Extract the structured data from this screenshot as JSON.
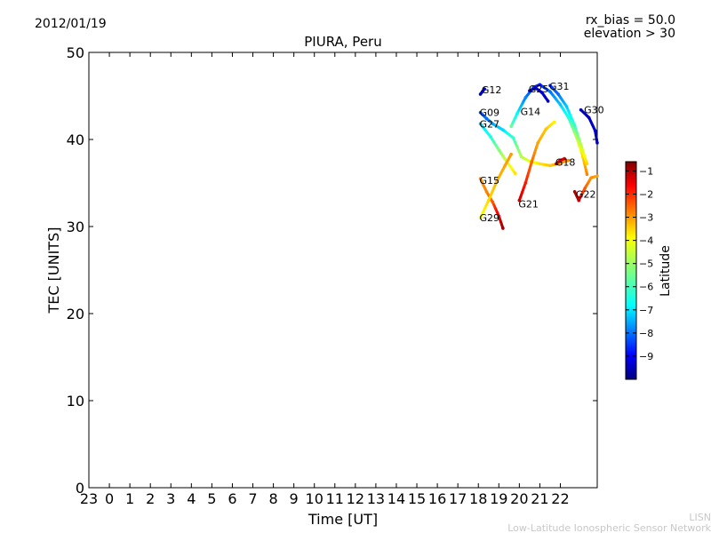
{
  "header": {
    "date": "2012/01/19",
    "rx_bias": "rx_bias = 50.0",
    "elevation": "elevation > 30"
  },
  "credit": {
    "short": "LISN",
    "long": "Low-Latitude Ionospheric Sensor Network"
  },
  "chart_data": {
    "type": "scatter",
    "title": "PIURA, Peru",
    "xlabel": "Time [UT]",
    "ylabel": "TEC [UNITS]",
    "ylim": [
      0,
      50
    ],
    "xlim": [
      -1,
      23.8
    ],
    "x_ticks": [
      {
        "x": -1,
        "label": "23"
      },
      {
        "x": 0,
        "label": "0"
      },
      {
        "x": 1,
        "label": "1"
      },
      {
        "x": 2,
        "label": "2"
      },
      {
        "x": 3,
        "label": "3"
      },
      {
        "x": 4,
        "label": "4"
      },
      {
        "x": 5,
        "label": "5"
      },
      {
        "x": 6,
        "label": "6"
      },
      {
        "x": 7,
        "label": "7"
      },
      {
        "x": 8,
        "label": "8"
      },
      {
        "x": 9,
        "label": "9"
      },
      {
        "x": 10,
        "label": "10"
      },
      {
        "x": 11,
        "label": "11"
      },
      {
        "x": 12,
        "label": "12"
      },
      {
        "x": 13,
        "label": "13"
      },
      {
        "x": 14,
        "label": "14"
      },
      {
        "x": 15,
        "label": "15"
      },
      {
        "x": 16,
        "label": "16"
      },
      {
        "x": 17,
        "label": "17"
      },
      {
        "x": 18,
        "label": "18"
      },
      {
        "x": 19,
        "label": "19"
      },
      {
        "x": 20,
        "label": "20"
      },
      {
        "x": 21,
        "label": "21"
      },
      {
        "x": 22,
        "label": "22"
      }
    ],
    "y_ticks": [
      0,
      10,
      20,
      30,
      40,
      50
    ],
    "grid": false,
    "colorbar": {
      "label": "Latitude",
      "min": -10,
      "max": -0.6,
      "ticks": [
        -1,
        -2,
        -3,
        -4,
        -5,
        -6,
        -7,
        -8,
        -9
      ],
      "colormap": "jet"
    },
    "series": [
      {
        "name": "G12",
        "label_at": [
          18.2,
          45.7
        ],
        "points": [
          [
            18.1,
            45.2,
            -9.5
          ],
          [
            18.2,
            45.5,
            -9.3
          ],
          [
            18.3,
            45.8,
            -9.2
          ]
        ]
      },
      {
        "name": "G09",
        "label_at": [
          18.1,
          43.1
        ],
        "points": [
          [
            18.1,
            43.1,
            -8.1
          ],
          [
            18.4,
            42.4,
            -7.8
          ],
          [
            18.7,
            41.8,
            -7.3
          ],
          [
            19.2,
            41.1,
            -6.8
          ],
          [
            19.7,
            40.2,
            -6.0
          ],
          [
            20.1,
            38.0,
            -4.8
          ],
          [
            20.5,
            37.5,
            -4.4
          ],
          [
            21.0,
            37.2,
            -3.9
          ],
          [
            21.5,
            37.0,
            -3.6
          ],
          [
            22.0,
            37.3,
            -3.3
          ],
          [
            22.4,
            37.6,
            -3.1
          ]
        ]
      },
      {
        "name": "G27",
        "label_at": [
          18.1,
          41.8
        ],
        "points": [
          [
            18.1,
            41.8,
            -7.0
          ],
          [
            18.6,
            40.3,
            -6.2
          ],
          [
            19.0,
            38.8,
            -5.3
          ],
          [
            19.4,
            37.4,
            -4.5
          ],
          [
            19.8,
            36.1,
            -3.9
          ]
        ]
      },
      {
        "name": "G14",
        "label_at": [
          20.1,
          43.2
        ],
        "points": [
          [
            19.6,
            41.5,
            -5.5
          ],
          [
            19.9,
            43.0,
            -6.5
          ],
          [
            20.3,
            44.8,
            -7.6
          ],
          [
            20.7,
            46.0,
            -8.3
          ],
          [
            21.0,
            46.3,
            -8.6
          ],
          [
            21.5,
            45.5,
            -7.8
          ],
          [
            22.0,
            44.0,
            -7.0
          ],
          [
            22.4,
            42.5,
            -6.2
          ],
          [
            22.8,
            40.2,
            -4.8
          ],
          [
            23.1,
            38.0,
            -3.8
          ],
          [
            23.3,
            36.0,
            -3.0
          ]
        ]
      },
      {
        "name": "G25",
        "label_at": [
          20.5,
          45.8
        ],
        "points": [
          [
            20.5,
            45.6,
            -9.4
          ],
          [
            20.8,
            45.9,
            -9.3
          ],
          [
            21.1,
            45.4,
            -9.2
          ],
          [
            21.4,
            44.4,
            -9.4
          ]
        ]
      },
      {
        "name": "G31",
        "label_at": [
          21.5,
          46.1
        ],
        "points": [
          [
            21.5,
            46.2,
            -8.5
          ],
          [
            21.9,
            45.2,
            -7.8
          ],
          [
            22.3,
            43.8,
            -7.0
          ],
          [
            22.7,
            41.6,
            -6.0
          ],
          [
            23.0,
            39.4,
            -4.8
          ],
          [
            23.3,
            37.2,
            -3.8
          ]
        ]
      },
      {
        "name": "G30",
        "label_at": [
          23.2,
          43.4
        ],
        "points": [
          [
            23.0,
            43.4,
            -9.5
          ],
          [
            23.4,
            42.5,
            -9.4
          ],
          [
            23.7,
            41.0,
            -9.3
          ],
          [
            23.8,
            39.6,
            -9.5
          ]
        ]
      },
      {
        "name": "G18",
        "label_at": [
          21.8,
          37.4
        ],
        "points": [
          [
            21.8,
            37.2,
            -1.2
          ],
          [
            22.0,
            37.6,
            -1.4
          ],
          [
            22.2,
            37.8,
            -1.6
          ]
        ]
      },
      {
        "name": "G15",
        "label_at": [
          18.1,
          35.3
        ],
        "points": [
          [
            18.1,
            35.5,
            -3.1
          ],
          [
            18.4,
            34.0,
            -3.0
          ],
          [
            18.7,
            32.8,
            -2.6
          ],
          [
            19.0,
            31.2,
            -1.6
          ],
          [
            19.2,
            29.8,
            -0.9
          ]
        ]
      },
      {
        "name": "G29",
        "label_at": [
          18.1,
          31.0
        ],
        "points": [
          [
            18.1,
            31.0,
            -4.2
          ],
          [
            18.5,
            33.0,
            -3.8
          ],
          [
            18.9,
            35.2,
            -3.5
          ],
          [
            19.3,
            37.0,
            -3.3
          ],
          [
            19.6,
            38.3,
            -3.2
          ]
        ]
      },
      {
        "name": "G21",
        "label_at": [
          20.0,
          32.6
        ],
        "points": [
          [
            20.0,
            33.0,
            -1.3
          ],
          [
            20.3,
            35.0,
            -2.0
          ],
          [
            20.6,
            37.4,
            -2.7
          ],
          [
            20.9,
            39.6,
            -3.3
          ],
          [
            21.3,
            41.2,
            -3.6
          ],
          [
            21.7,
            42.0,
            -4.0
          ]
        ]
      },
      {
        "name": "G22",
        "label_at": [
          22.8,
          33.7
        ],
        "points": [
          [
            22.7,
            34.0,
            -1.0
          ],
          [
            22.9,
            33.0,
            -1.2
          ],
          [
            23.2,
            34.4,
            -2.6
          ],
          [
            23.5,
            35.6,
            -3.1
          ],
          [
            23.8,
            35.8,
            -3.3
          ]
        ]
      }
    ]
  }
}
